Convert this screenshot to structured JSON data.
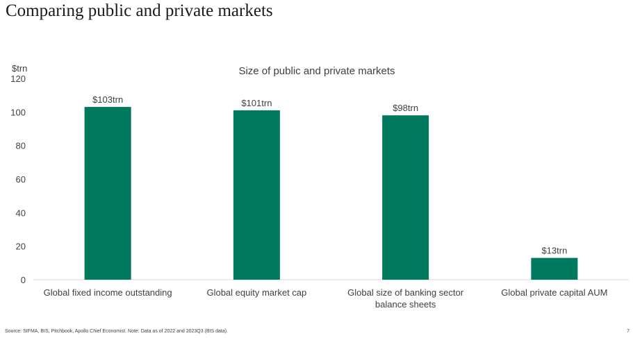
{
  "page": {
    "title": "Comparing public and private markets",
    "source": "Source: SIFMA, BIS, Pitchbook, Apollo Chief Economist. Note: Data as of 2022 and 2023Q3 (BIS data).",
    "page_number": "7"
  },
  "colors": {
    "bar": "#007A5E",
    "text": "#404040",
    "title": "#1a1a1a",
    "axis_line": "#d9d9d9"
  },
  "chart_data": {
    "type": "bar",
    "title": "Size of public and private markets",
    "ylabel": "$trn",
    "xlabel": "",
    "categories": [
      "Global fixed income outstanding",
      "Global equity market cap",
      "Global size of banking sector balance sheets",
      "Global private capital AUM"
    ],
    "values": [
      103,
      101,
      98,
      13
    ],
    "data_labels": [
      "$103trn",
      "$101trn",
      "$98trn",
      "$13trn"
    ],
    "ylim": [
      0,
      120
    ],
    "yticks": [
      0,
      20,
      40,
      60,
      80,
      100,
      120
    ],
    "grid": false,
    "legend": "none"
  }
}
